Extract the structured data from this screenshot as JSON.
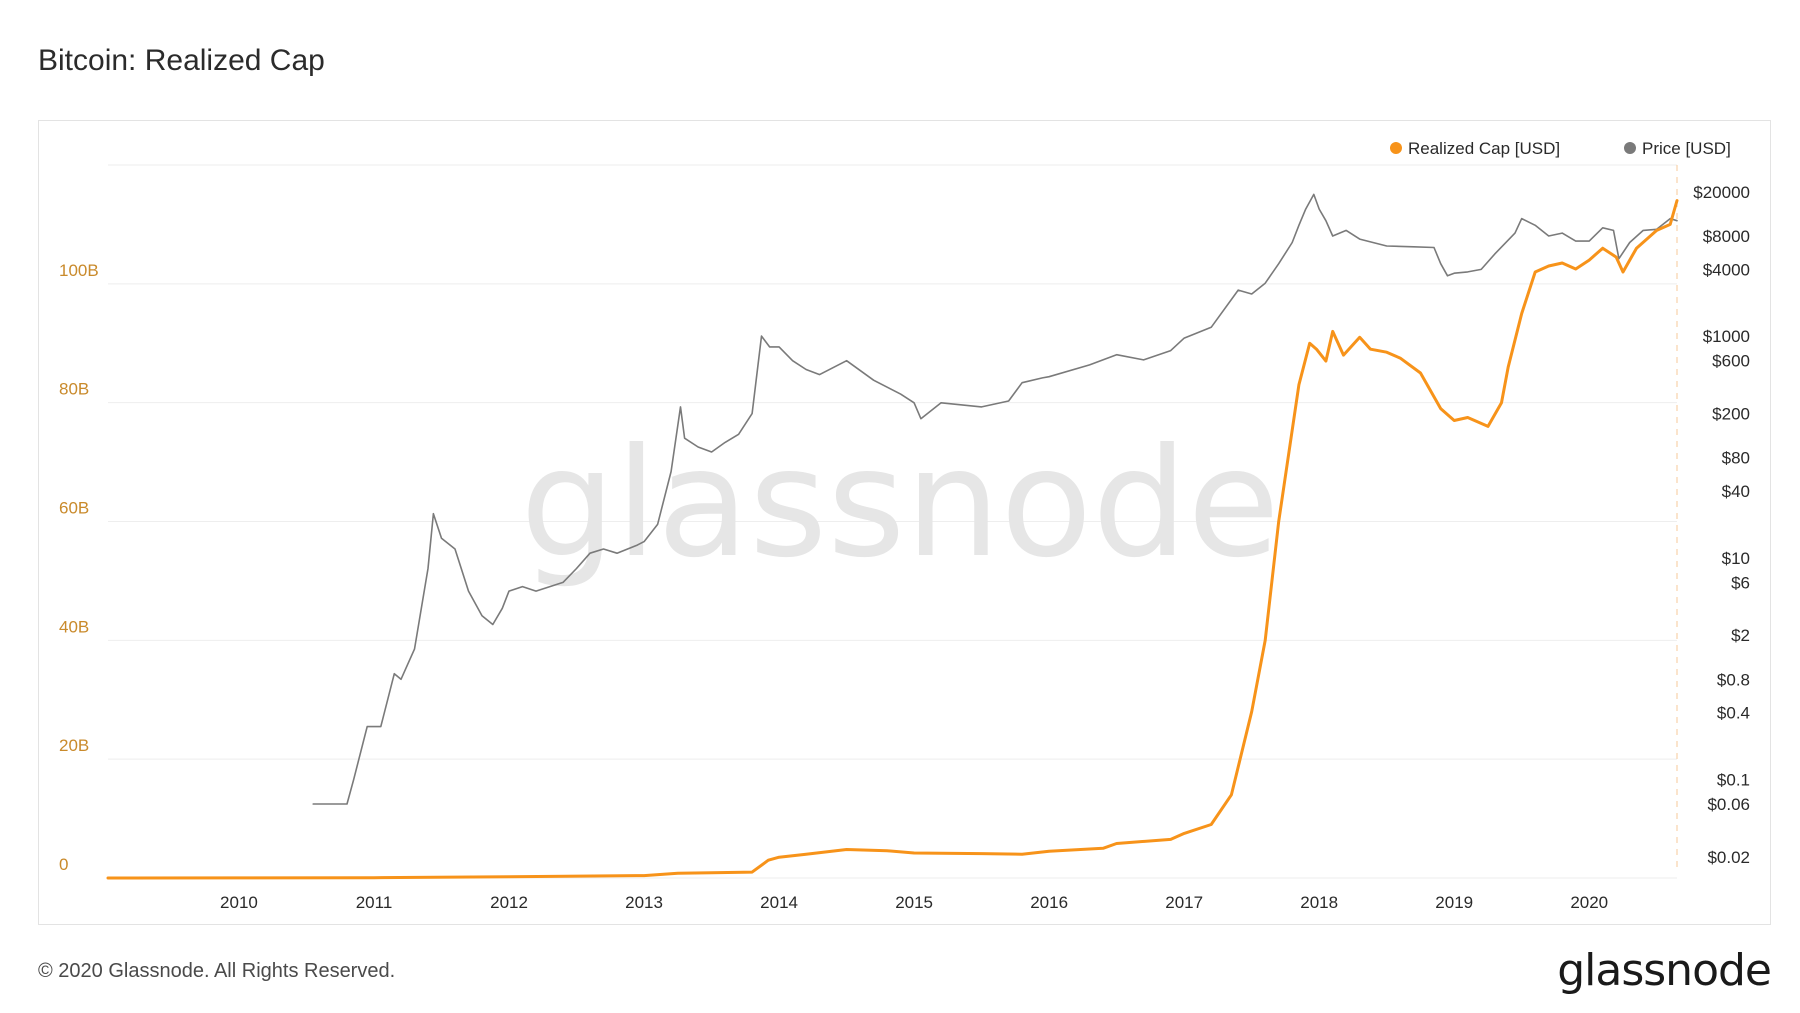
{
  "title": "Bitcoin: Realized Cap",
  "footer": "© 2020 Glassnode. All Rights Reserved.",
  "logo": "glassnode",
  "watermark": "glassnode",
  "colors": {
    "realized_cap": "#f7931a",
    "price": "#7a7a7a",
    "grid": "#eeeeee",
    "left_axis": "#c98a2b"
  },
  "chart_data": {
    "type": "line",
    "xlim": [
      2009.03,
      2020.65
    ],
    "x_ticks": [
      "2010",
      "2011",
      "2012",
      "2013",
      "2014",
      "2015",
      "2016",
      "2017",
      "2018",
      "2019",
      "2020"
    ],
    "y_left": {
      "ylim": [
        0,
        120
      ],
      "ticks": [
        0,
        20,
        40,
        60,
        80,
        100
      ],
      "tick_labels": [
        "0",
        "20B",
        "40B",
        "60B",
        "80B",
        "100B"
      ]
    },
    "y_right": {
      "scale": "log",
      "ylim": [
        0.0129,
        35000
      ],
      "tick_values": [
        20000,
        8000,
        4000,
        1000,
        600,
        200,
        80,
        40,
        10,
        6,
        2,
        0.8,
        0.4,
        0.1,
        0.06,
        0.02
      ],
      "tick_labels": [
        "$20000",
        "$8000",
        "$4000",
        "$1000",
        "$600",
        "$200",
        "$80",
        "$40",
        "$10",
        "$6",
        "$2",
        "$0.8",
        "$0.4",
        "$0.1",
        "$0.06",
        "$0.02"
      ]
    },
    "grid": true,
    "legend": {
      "placement": "top-right",
      "entries": [
        "Realized Cap [USD]",
        "Price [USD]"
      ]
    },
    "series": [
      {
        "name": "Realized Cap [USD]",
        "axis": "left",
        "color": "#f7931a",
        "x": [
          2009.03,
          2010.0,
          2011.0,
          2012.0,
          2013.0,
          2013.25,
          2013.5,
          2013.8,
          2013.92,
          2014.0,
          2014.2,
          2014.5,
          2014.8,
          2015.0,
          2015.5,
          2015.8,
          2016.0,
          2016.4,
          2016.5,
          2016.9,
          2017.0,
          2017.2,
          2017.35,
          2017.5,
          2017.6,
          2017.7,
          2017.85,
          2017.93,
          2017.98,
          2018.05,
          2018.1,
          2018.18,
          2018.3,
          2018.38,
          2018.5,
          2018.6,
          2018.75,
          2018.9,
          2019.0,
          2019.1,
          2019.25,
          2019.35,
          2019.4,
          2019.5,
          2019.6,
          2019.7,
          2019.8,
          2019.9,
          2020.0,
          2020.1,
          2020.2,
          2020.25,
          2020.35,
          2020.5,
          2020.6,
          2020.65
        ],
        "y": [
          0,
          0.01,
          0.05,
          0.2,
          0.4,
          0.8,
          0.9,
          1.0,
          3.0,
          3.5,
          4.0,
          4.8,
          4.6,
          4.2,
          4.1,
          4.0,
          4.5,
          5.0,
          5.8,
          6.5,
          7.5,
          9.0,
          14.0,
          28.0,
          40.0,
          60.0,
          83.0,
          90.0,
          89.0,
          87.0,
          92.0,
          88.0,
          91.0,
          89.0,
          88.5,
          87.5,
          85.0,
          79.0,
          77.0,
          77.5,
          76.0,
          80.0,
          86.0,
          95.0,
          102.0,
          103.0,
          103.5,
          102.5,
          104.0,
          106.0,
          104.5,
          102.0,
          106.0,
          109.0,
          110.0,
          114.0
        ]
      },
      {
        "name": "Price [USD]",
        "axis": "right",
        "color": "#7a7a7a",
        "x": [
          2010.55,
          2010.7,
          2010.8,
          2010.85,
          2010.95,
          2011.05,
          2011.15,
          2011.2,
          2011.3,
          2011.4,
          2011.44,
          2011.5,
          2011.6,
          2011.7,
          2011.8,
          2011.88,
          2011.95,
          2012.0,
          2012.1,
          2012.2,
          2012.4,
          2012.5,
          2012.6,
          2012.7,
          2012.8,
          2012.95,
          2013.0,
          2013.1,
          2013.2,
          2013.27,
          2013.3,
          2013.4,
          2013.5,
          2013.6,
          2013.7,
          2013.8,
          2013.87,
          2013.93,
          2014.0,
          2014.1,
          2014.2,
          2014.3,
          2014.5,
          2014.7,
          2014.9,
          2015.0,
          2015.05,
          2015.2,
          2015.5,
          2015.7,
          2015.8,
          2015.95,
          2016.0,
          2016.3,
          2016.5,
          2016.7,
          2016.9,
          2017.0,
          2017.2,
          2017.4,
          2017.5,
          2017.6,
          2017.7,
          2017.8,
          2017.85,
          2017.9,
          2017.96,
          2018.0,
          2018.05,
          2018.1,
          2018.2,
          2018.3,
          2018.5,
          2018.7,
          2018.85,
          2018.9,
          2018.95,
          2019.0,
          2019.1,
          2019.2,
          2019.3,
          2019.45,
          2019.5,
          2019.6,
          2019.7,
          2019.8,
          2019.9,
          2020.0,
          2020.1,
          2020.18,
          2020.22,
          2020.3,
          2020.4,
          2020.5,
          2020.6,
          2020.65
        ],
        "y": [
          0.06,
          0.06,
          0.06,
          0.1,
          0.3,
          0.3,
          0.9,
          0.8,
          1.5,
          8,
          25,
          15,
          12,
          5,
          3,
          2.5,
          3.5,
          5,
          5.5,
          5,
          6,
          8,
          11,
          12,
          11,
          13,
          14,
          20,
          60,
          230,
          120,
          100,
          90,
          110,
          130,
          200,
          1000,
          800,
          800,
          600,
          500,
          450,
          600,
          400,
          300,
          250,
          180,
          250,
          230,
          260,
          380,
          420,
          430,
          550,
          680,
          610,
          740,
          960,
          1200,
          2600,
          2400,
          3000,
          4500,
          7000,
          10000,
          14000,
          19000,
          14000,
          11000,
          8000,
          9000,
          7500,
          6500,
          6400,
          6300,
          4500,
          3500,
          3700,
          3800,
          4000,
          5500,
          8500,
          11500,
          10000,
          8000,
          8500,
          7200,
          7200,
          9500,
          9000,
          5000,
          7000,
          9000,
          9200,
          11500,
          11000
        ]
      }
    ]
  }
}
